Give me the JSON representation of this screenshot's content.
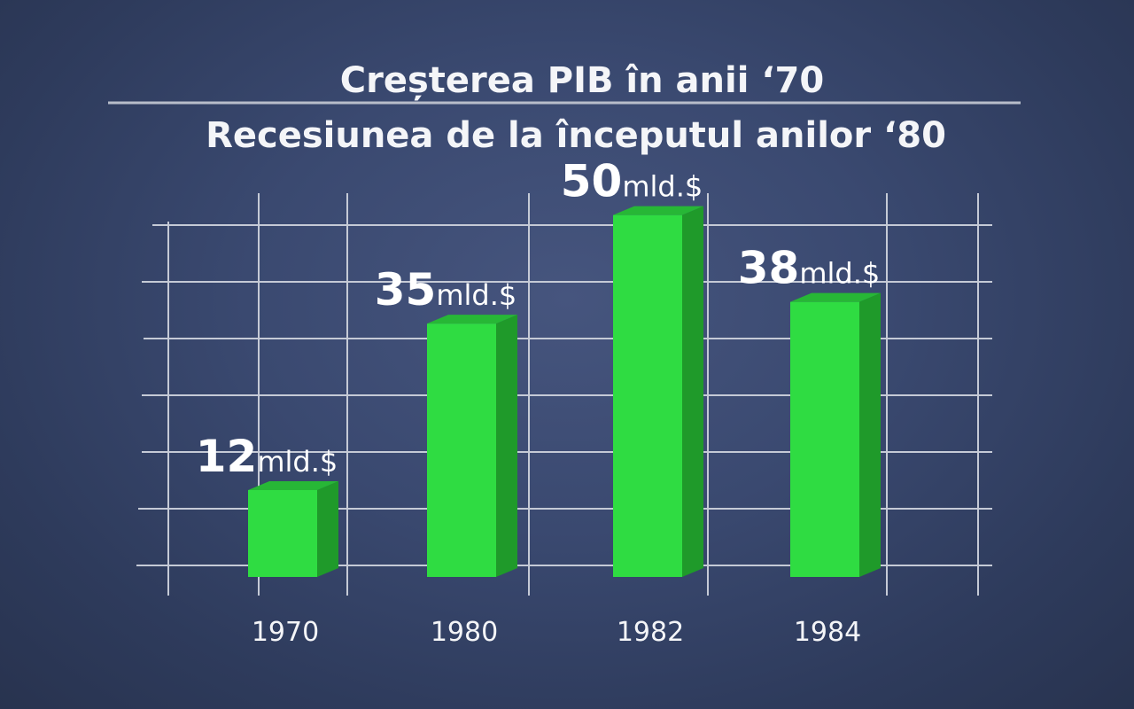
{
  "chart_data": {
    "type": "bar",
    "title": "Creșterea PIB în anii ‘70",
    "subtitle": "Recesiunea de la începutul anilor ‘80",
    "categories": [
      "1970",
      "1980",
      "1982",
      "1984"
    ],
    "values": [
      12,
      35,
      50,
      38
    ],
    "value_unit": "mld.$",
    "xlabel": "",
    "ylabel": "",
    "ylim": [
      0,
      54
    ],
    "grid": true,
    "bar_style": "3d",
    "colors": {
      "bar_front": "#2fdc42",
      "bar_side": "#1f9a2a",
      "bar_top": "#27b736",
      "grid": "#c5cad6",
      "text": "#f4f5f8"
    }
  }
}
